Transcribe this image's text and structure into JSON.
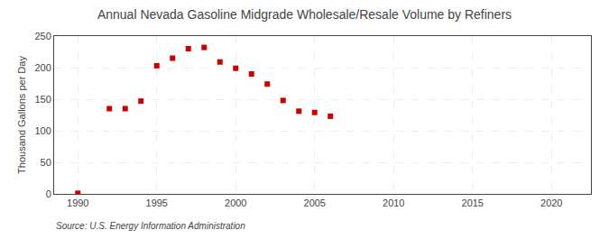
{
  "chart_data": {
    "type": "scatter",
    "title": "Annual Nevada Gasoline Midgrade Wholesale/Resale Volume by Refiners",
    "y_label": "Thousand Gallons per Day",
    "source": "Source: U.S. Energy Information Administration",
    "x": [
      1990,
      1992,
      1993,
      1994,
      1995,
      1996,
      1997,
      1998,
      1999,
      2000,
      2001,
      2002,
      2003,
      2004,
      2005,
      2006
    ],
    "values": [
      1,
      135,
      135,
      147,
      203,
      215,
      230,
      232,
      209,
      199,
      190,
      174,
      148,
      131,
      129,
      123
    ],
    "color": "#cc0000",
    "marker": "square",
    "xlim": [
      1988.5,
      2022.5
    ],
    "ylim": [
      0,
      250
    ],
    "xticks": [
      1990,
      1995,
      2000,
      2005,
      2010,
      2015,
      2020
    ],
    "yticks": [
      0,
      50,
      100,
      150,
      200,
      250
    ],
    "grid": true
  }
}
